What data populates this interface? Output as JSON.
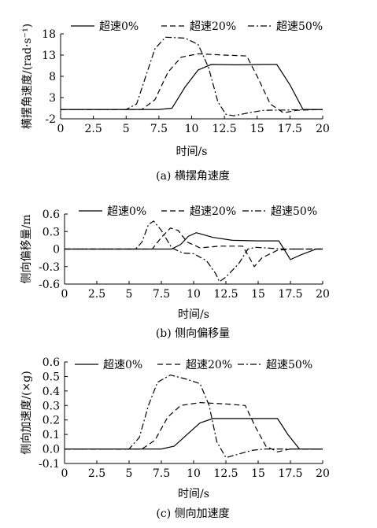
{
  "chart_data": [
    {
      "type": "line",
      "caption": "(a) 横摆角速度",
      "xlabel": "时间/s",
      "ylabel": "横摆角速度/(rad·s⁻¹)",
      "xlim": [
        0,
        20
      ],
      "ylim": [
        -2,
        18
      ],
      "xticks": [
        "0",
        "2.5",
        "5",
        "7.5",
        "10",
        "12.5",
        "15",
        "17.5",
        "20"
      ],
      "yticks": [
        "-2",
        "3",
        "8",
        "13",
        "18"
      ],
      "legend": "top",
      "series": [
        {
          "name": "超速0%",
          "dash": "solid",
          "x": [
            0,
            7.5,
            8.5,
            9.5,
            10.5,
            11.5,
            13.5,
            15.5,
            16.5,
            17.5,
            18.5,
            20
          ],
          "y": [
            0.2,
            0.2,
            0.5,
            5.5,
            9.5,
            10.8,
            10.7,
            10.8,
            10.8,
            6,
            0.2,
            0.2
          ]
        },
        {
          "name": "超速20%",
          "dash": "dashed",
          "x": [
            0,
            6.2,
            7.2,
            8.2,
            9.2,
            10.5,
            12.5,
            14.2,
            15.0,
            16.0,
            17.0,
            18.0,
            20
          ],
          "y": [
            0.2,
            0.2,
            2.5,
            9,
            12.5,
            13.3,
            13,
            12.8,
            8,
            1.5,
            -0.6,
            0,
            0.2
          ]
        },
        {
          "name": "超速50%",
          "dash": "dashdot",
          "x": [
            0,
            5.0,
            5.8,
            6.5,
            7.2,
            8.0,
            9.5,
            10.5,
            11.3,
            12.0,
            12.6,
            13.2,
            14.5,
            15.5,
            20
          ],
          "y": [
            0.2,
            0.2,
            1.5,
            8,
            14.5,
            17.2,
            17,
            15.5,
            10,
            2,
            -0.9,
            -1.3,
            -0.5,
            0,
            0.2
          ]
        }
      ]
    },
    {
      "type": "line",
      "caption": "(b) 侧向偏移量",
      "xlabel": "时间/s",
      "ylabel": "侧向偏移量/m",
      "xlim": [
        0,
        20
      ],
      "ylim": [
        -0.6,
        0.6
      ],
      "xticks": [
        "0",
        "2.5",
        "5",
        "7.5",
        "10",
        "12.5",
        "15",
        "17.5",
        "20"
      ],
      "yticks": [
        "-0.6",
        "-0.3",
        "0",
        "0.3",
        "0.6"
      ],
      "legend": "top",
      "series": [
        {
          "name": "超速0%",
          "dash": "solid",
          "x": [
            0,
            8.3,
            9.0,
            9.6,
            10.2,
            11.5,
            13,
            15,
            16.6,
            17.0,
            17.5,
            18.3,
            19.5,
            20
          ],
          "y": [
            0,
            0,
            0.08,
            0.22,
            0.28,
            0.2,
            0.15,
            0.14,
            0.14,
            0,
            -0.18,
            -0.1,
            0,
            0
          ]
        },
        {
          "name": "超速20%",
          "dash": "dashed",
          "x": [
            0,
            6.8,
            7.5,
            8.2,
            8.8,
            9.5,
            10.5,
            12,
            13.8,
            14.2,
            14.7,
            15.3,
            16.5,
            17.5,
            20
          ],
          "y": [
            0,
            0,
            0.2,
            0.36,
            0.32,
            0.12,
            0.02,
            0.05,
            0.05,
            -0.1,
            -0.3,
            -0.15,
            -0.02,
            0,
            0
          ]
        },
        {
          "name": "超速50%",
          "dash": "dashdot",
          "x": [
            0,
            5.5,
            6.0,
            6.5,
            6.9,
            7.5,
            8.3,
            9.2,
            10.0,
            11.0,
            11.7,
            12.0,
            12.5,
            13.5,
            14.2,
            14.8,
            15.5,
            17,
            20
          ],
          "y": [
            0,
            0,
            0.12,
            0.42,
            0.48,
            0.32,
            0.02,
            -0.07,
            -0.08,
            -0.2,
            -0.42,
            -0.56,
            -0.48,
            -0.25,
            0,
            0.03,
            0.02,
            0,
            0
          ]
        }
      ]
    },
    {
      "type": "line",
      "caption": "(c) 侧向加速度",
      "xlabel": "时间/s",
      "ylabel": "侧向加速度/(×g)",
      "xlim": [
        0,
        20
      ],
      "ylim": [
        -0.1,
        0.6
      ],
      "xticks": [
        "0",
        "2.5",
        "5",
        "7.5",
        "10",
        "12.5",
        "15",
        "17.5",
        "20"
      ],
      "yticks": [
        "-0.1",
        "0.0",
        "0.1",
        "0.2",
        "0.3",
        "0.4",
        "0.5",
        "0.6"
      ],
      "legend": "top",
      "series": [
        {
          "name": "超速0%",
          "dash": "solid",
          "x": [
            0,
            7.5,
            8.5,
            9.5,
            10.5,
            11.5,
            13,
            15,
            16.5,
            17.3,
            18.2,
            20
          ],
          "y": [
            0,
            0,
            0.02,
            0.1,
            0.18,
            0.21,
            0.21,
            0.21,
            0.21,
            0.1,
            0,
            0
          ]
        },
        {
          "name": "超速20%",
          "dash": "dashed",
          "x": [
            0,
            6.0,
            7.0,
            8.0,
            9.0,
            10.5,
            12.5,
            14.0,
            14.8,
            15.6,
            16.5,
            17.5,
            20
          ],
          "y": [
            0,
            0,
            0.06,
            0.22,
            0.3,
            0.32,
            0.31,
            0.3,
            0.15,
            0.02,
            -0.02,
            0,
            0
          ]
        },
        {
          "name": "超速50%",
          "dash": "dashdot",
          "x": [
            0,
            5.0,
            5.8,
            6.5,
            7.2,
            8.2,
            9.5,
            10.5,
            11.2,
            11.8,
            12.5,
            13.3,
            14.5,
            15.5,
            20
          ],
          "y": [
            0,
            0,
            0.08,
            0.3,
            0.46,
            0.51,
            0.48,
            0.45,
            0.3,
            0.05,
            -0.06,
            -0.04,
            -0.01,
            0,
            0
          ]
        }
      ]
    }
  ]
}
